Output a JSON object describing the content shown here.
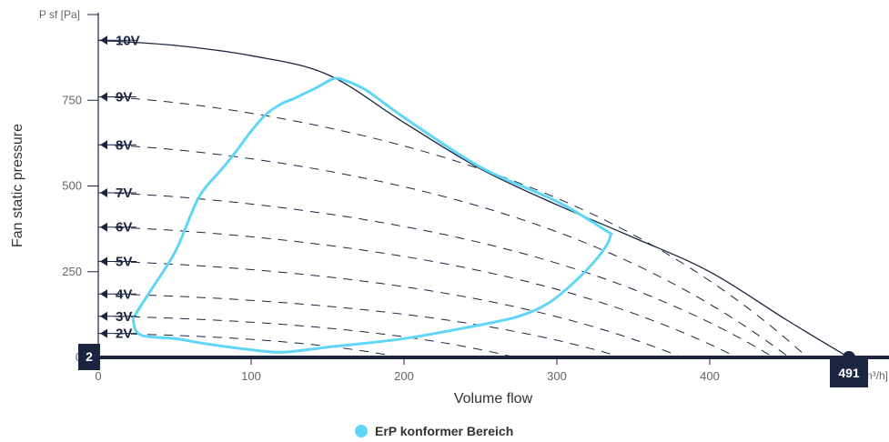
{
  "chart_data": {
    "type": "line",
    "xlabel": "Volume flow",
    "xunit": "[m³/h]",
    "ylabel": "Fan static pressure",
    "yunit": "P sf [Pa]",
    "xlim": [
      0,
      491
    ],
    "ylim": [
      0,
      1000
    ],
    "xticks": [
      0,
      100,
      200,
      300,
      400
    ],
    "yticks": [
      0,
      250,
      500,
      750
    ],
    "grid": false,
    "min_badge": "2",
    "max_badge": "491",
    "max_curve": {
      "name": "10V",
      "x": [
        0,
        50,
        100,
        150,
        200,
        250,
        300,
        350,
        400,
        450,
        491
      ],
      "y": [
        925,
        910,
        880,
        825,
        685,
        550,
        445,
        350,
        250,
        110,
        0
      ]
    },
    "voltage_curves": [
      {
        "name": "9V",
        "y0": 760,
        "x_end": 464
      },
      {
        "name": "8V",
        "y0": 620,
        "x_end": 452
      },
      {
        "name": "7V",
        "y0": 480,
        "x_end": 442
      },
      {
        "name": "6V",
        "y0": 380,
        "x_end": 418
      },
      {
        "name": "5V",
        "y0": 280,
        "x_end": 382
      },
      {
        "name": "4V",
        "y0": 185,
        "x_end": 343
      },
      {
        "name": "3V",
        "y0": 120,
        "x_end": 273
      },
      {
        "name": "2V",
        "y0": 70,
        "x_end": 198
      }
    ],
    "erp_region": {
      "name": "ErP konformer Bereich",
      "color": "#5fd6f5",
      "x": [
        155,
        160,
        175,
        200,
        250,
        300,
        332,
        335,
        330,
        315,
        295,
        275,
        250,
        200,
        150,
        120,
        95,
        70,
        50,
        28,
        23,
        25,
        35,
        50,
        60,
        65,
        70,
        80,
        90,
        100,
        110,
        120,
        128,
        135,
        142,
        150,
        155
      ],
      "y": [
        815,
        810,
        780,
        700,
        555,
        455,
        370,
        355,
        310,
        235,
        160,
        120,
        95,
        55,
        30,
        15,
        25,
        40,
        55,
        65,
        105,
        130,
        200,
        305,
        410,
        460,
        495,
        545,
        600,
        660,
        710,
        740,
        755,
        770,
        785,
        805,
        815
      ]
    },
    "legend": [
      {
        "label": "ErP konformer Bereich",
        "color": "#5fd6f5"
      }
    ]
  }
}
